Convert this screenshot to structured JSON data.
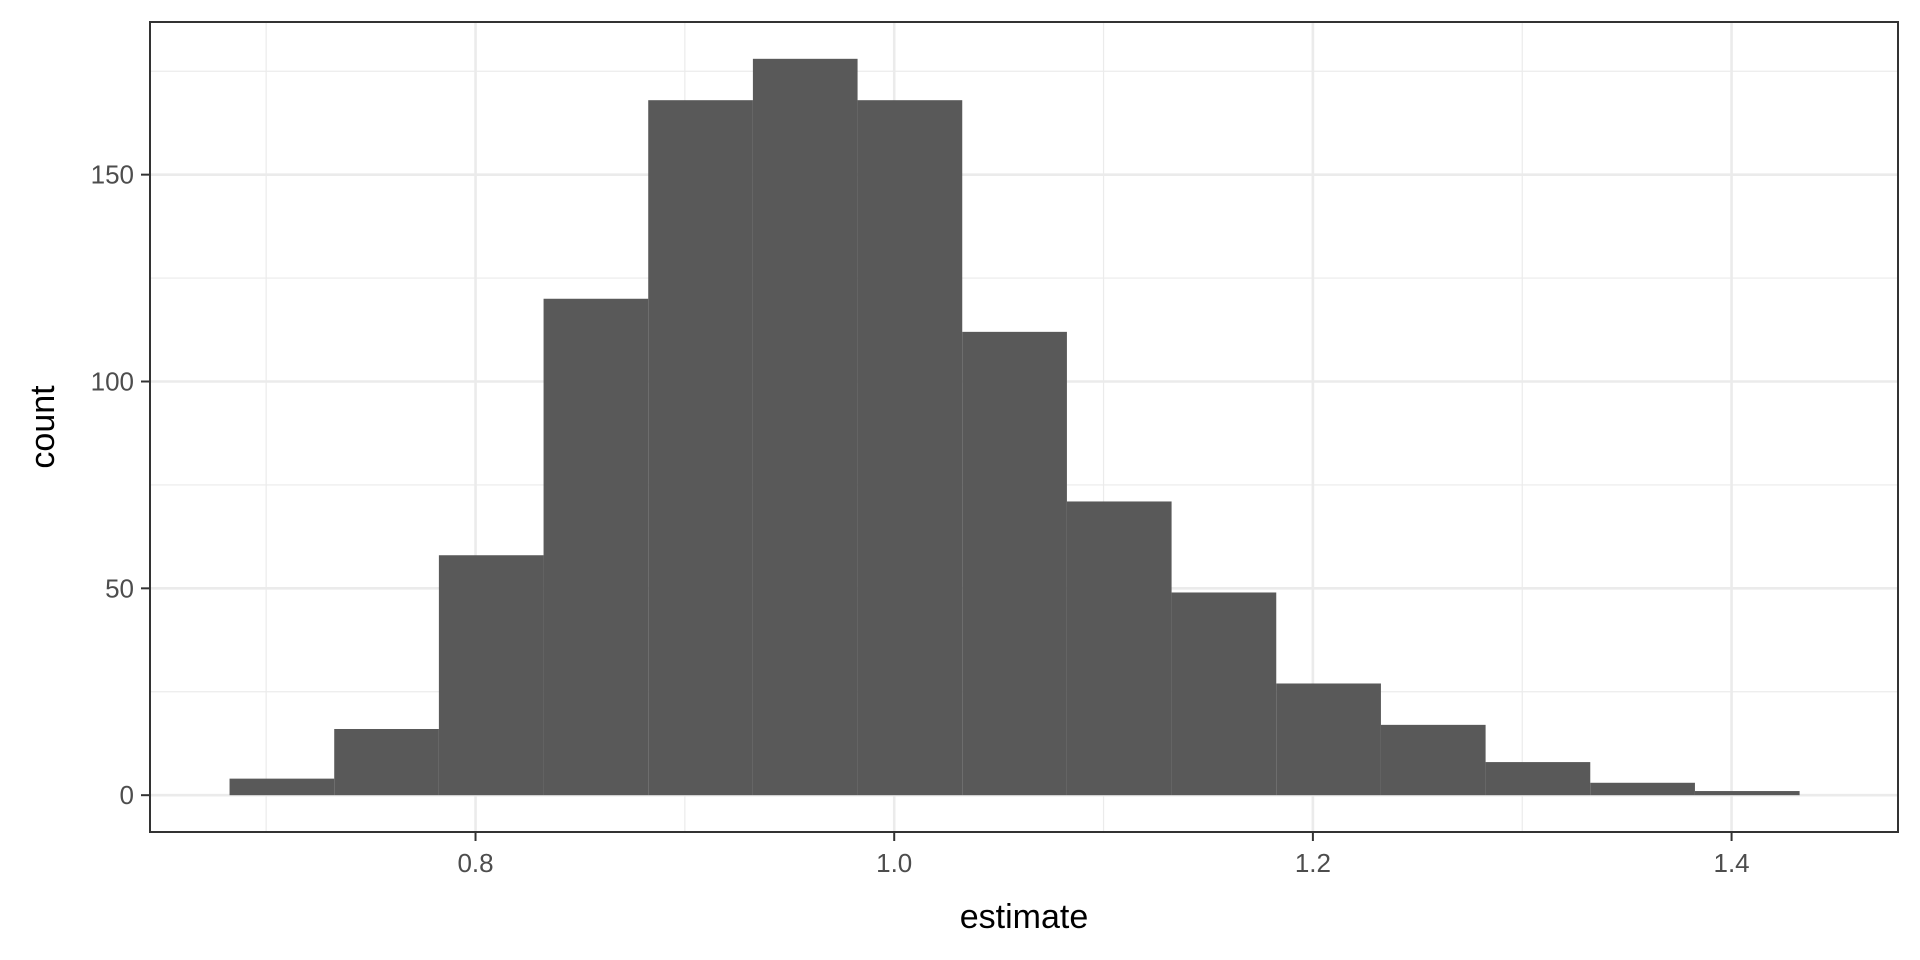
{
  "chart_data": {
    "type": "histogram",
    "xlabel": "estimate",
    "ylabel": "count",
    "x_ticks": [
      0.8,
      1.0,
      1.2,
      1.4
    ],
    "x_tick_labels": [
      "0.8",
      "1.0",
      "1.2",
      "1.4"
    ],
    "y_ticks": [
      0,
      50,
      100,
      150
    ],
    "y_tick_labels": [
      "0",
      "50",
      "100",
      "150"
    ],
    "xlim": [
      0.6445,
      1.4795
    ],
    "ylim": [
      -8.9,
      186.9
    ],
    "grid": true,
    "bar_color": "#595959",
    "bins": [
      {
        "x0": 0.6825,
        "x1": 0.7325,
        "count": 4
      },
      {
        "x0": 0.7325,
        "x1": 0.7825,
        "count": 16
      },
      {
        "x0": 0.7825,
        "x1": 0.8325,
        "count": 58
      },
      {
        "x0": 0.8325,
        "x1": 0.8825,
        "count": 120
      },
      {
        "x0": 0.8825,
        "x1": 0.9325,
        "count": 168
      },
      {
        "x0": 0.9325,
        "x1": 0.9825,
        "count": 178
      },
      {
        "x0": 0.9825,
        "x1": 1.0325,
        "count": 168
      },
      {
        "x0": 1.0325,
        "x1": 1.0825,
        "count": 112
      },
      {
        "x0": 1.0825,
        "x1": 1.1325,
        "count": 71
      },
      {
        "x0": 1.1325,
        "x1": 1.1825,
        "count": 49
      },
      {
        "x0": 1.1825,
        "x1": 1.2325,
        "count": 27
      },
      {
        "x0": 1.2325,
        "x1": 1.2825,
        "count": 17
      },
      {
        "x0": 1.2825,
        "x1": 1.3325,
        "count": 8
      },
      {
        "x0": 1.3325,
        "x1": 1.3825,
        "count": 3
      },
      {
        "x0": 1.3825,
        "x1": 1.4325,
        "count": 1
      }
    ]
  }
}
